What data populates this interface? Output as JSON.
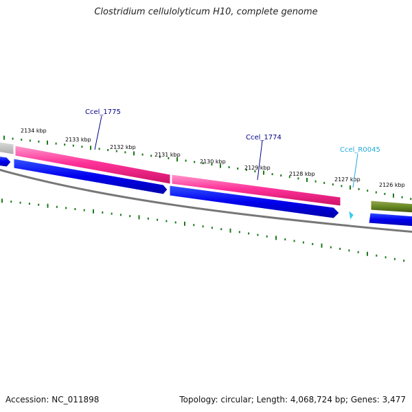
{
  "title": "Clostridium cellulolyticum H10, complete genome",
  "footer": {
    "accession": "Accession: NC_011898",
    "summary": "Topology: circular; Length: 4,068,724 bp; Genes: 3,477"
  },
  "colors": {
    "cds_forward": "#ff3399",
    "cds_reverse": "#0000ee",
    "rna": "#33ccee",
    "other_feature": "#668822",
    "neighbor_feature": "#c0c0c0",
    "backbone": "#777777",
    "ticks": "#1a7a1a",
    "label_link": "#000088",
    "rna_label": "#22aadd"
  },
  "scale": {
    "ticks": [
      {
        "label": "2134 kbp"
      },
      {
        "label": "2133 kbp"
      },
      {
        "label": "2132 kbp"
      },
      {
        "label": "2131 kbp"
      },
      {
        "label": "2130 kbp"
      },
      {
        "label": "2129 kbp"
      },
      {
        "label": "2128 kbp"
      },
      {
        "label": "2127 kbp"
      },
      {
        "label": "2126 kbp"
      }
    ]
  },
  "features": [
    {
      "label": "Ccel_1775",
      "kind": "cds"
    },
    {
      "label": "Ccel_1774",
      "kind": "cds"
    },
    {
      "label": "Ccel_R0045",
      "kind": "rna"
    }
  ]
}
